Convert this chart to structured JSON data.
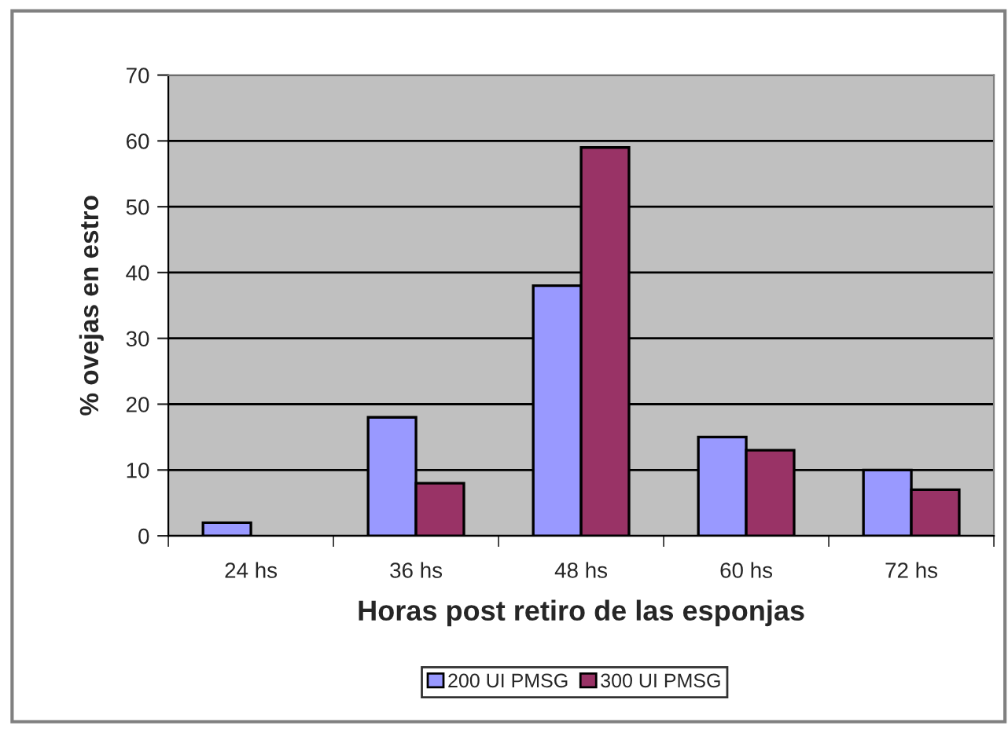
{
  "chart_data": {
    "type": "bar",
    "xlabel": "Horas post retiro de las esponjas",
    "ylabel": "% ovejas en estro",
    "categories": [
      "24 hs",
      "36 hs",
      "48 hs",
      "60 hs",
      "72 hs"
    ],
    "series": [
      {
        "name": "200 UI PMSG",
        "color": "#9999ff",
        "values": [
          2,
          18,
          38,
          15,
          10
        ]
      },
      {
        "name": "300 UI PMSG",
        "color": "#993366",
        "values": [
          null,
          8,
          59,
          13,
          7
        ]
      }
    ],
    "ylim": [
      0,
      70
    ],
    "yticks": [
      0,
      10,
      20,
      30,
      40,
      50,
      60,
      70
    ],
    "grid": "y",
    "legend": "bottom"
  }
}
